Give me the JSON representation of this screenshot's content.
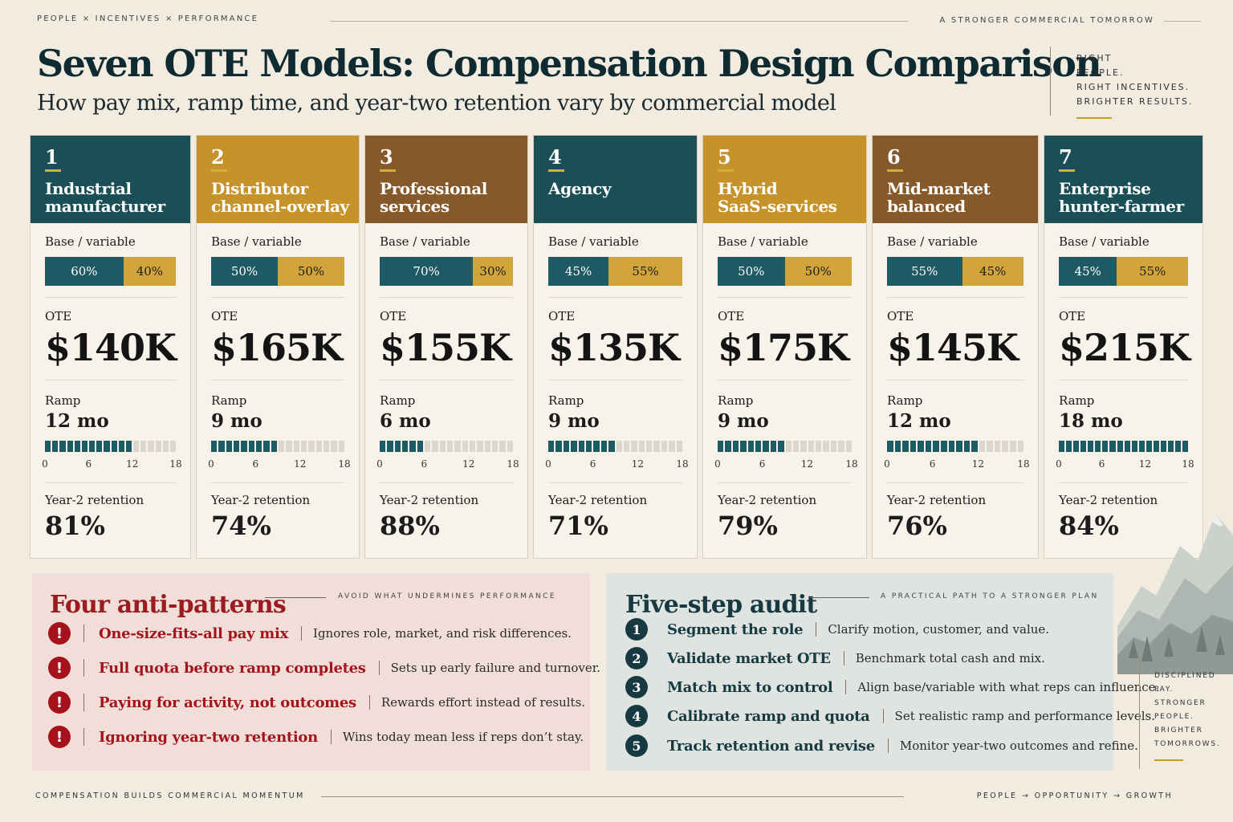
{
  "top": {
    "left": "PEOPLE  ×  INCENTIVES  ×  PERFORMANCE",
    "right": "A STRONGER COMMERCIAL TOMORROW"
  },
  "title": "Seven OTE Models: Compensation Design Comparison",
  "subtitle": "How pay mix, ramp time, and year-two retention vary by commercial model",
  "tagline": [
    "RIGHT",
    "PEOPLE.",
    "RIGHT INCENTIVES.",
    "BRIGHTER RESULTS."
  ],
  "labels": {
    "mix": "Base / variable",
    "ote": "OTE",
    "ramp": "Ramp",
    "retention": "Year-2 retention",
    "ticks": [
      "0",
      "6",
      "12",
      "18"
    ]
  },
  "colors": {
    "teal": "#1b4f58",
    "gold": "#c6922a",
    "brown": "#86592b",
    "base_bar": "#1e5a63",
    "variable_bar": "#d2a53b",
    "alert_red": "#a6121b"
  },
  "models": [
    {
      "num": "1",
      "name": [
        "Industrial",
        "manufacturer"
      ],
      "color": "teal",
      "base": 60,
      "variable": 40,
      "base_label": "60%",
      "variable_label": "40%",
      "ote": "$140K",
      "ramp_months": 12,
      "ramp": "12 mo",
      "retention": "81%"
    },
    {
      "num": "2",
      "name": [
        "Distributor",
        "channel-overlay"
      ],
      "color": "gold",
      "base": 50,
      "variable": 50,
      "base_label": "50%",
      "variable_label": "50%",
      "ote": "$165K",
      "ramp_months": 9,
      "ramp": "9 mo",
      "retention": "74%"
    },
    {
      "num": "3",
      "name": [
        "Professional",
        "services"
      ],
      "color": "brown",
      "base": 70,
      "variable": 30,
      "base_label": "70%",
      "variable_label": "30%",
      "ote": "$155K",
      "ramp_months": 6,
      "ramp": "6 mo",
      "retention": "88%"
    },
    {
      "num": "4",
      "name": [
        "Agency"
      ],
      "color": "teal",
      "base": 45,
      "variable": 55,
      "base_label": "45%",
      "variable_label": "55%",
      "ote": "$135K",
      "ramp_months": 9,
      "ramp": "9 mo",
      "retention": "71%"
    },
    {
      "num": "5",
      "name": [
        "Hybrid",
        "SaaS-services"
      ],
      "color": "gold",
      "base": 50,
      "variable": 50,
      "base_label": "50%",
      "variable_label": "50%",
      "ote": "$175K",
      "ramp_months": 9,
      "ramp": "9 mo",
      "retention": "79%"
    },
    {
      "num": "6",
      "name": [
        "Mid-market",
        "balanced"
      ],
      "color": "brown",
      "base": 55,
      "variable": 45,
      "base_label": "55%",
      "variable_label": "45%",
      "ote": "$145K",
      "ramp_months": 12,
      "ramp": "12 mo",
      "retention": "76%"
    },
    {
      "num": "7",
      "name": [
        "Enterprise",
        "hunter-farmer"
      ],
      "color": "teal",
      "base": 45,
      "variable": 55,
      "base_label": "45%",
      "variable_label": "55%",
      "ote": "$215K",
      "ramp_months": 18,
      "ramp": "18 mo",
      "retention": "84%"
    }
  ],
  "anti": {
    "title": "Four anti-patterns",
    "kicker": "AVOID WHAT UNDERMINES PERFORMANCE",
    "items": [
      {
        "title": "One-size-fits-all pay mix",
        "desc": "Ignores role, market, and risk differences."
      },
      {
        "title": "Full quota before ramp completes",
        "desc": "Sets up early failure and turnover."
      },
      {
        "title": "Paying for activity, not outcomes",
        "desc": "Rewards effort instead of results."
      },
      {
        "title": "Ignoring year-two retention",
        "desc": "Wins today mean less if reps don’t stay."
      }
    ]
  },
  "audit": {
    "title": "Five-step audit",
    "kicker": "A PRACTICAL PATH TO A STRONGER PLAN",
    "steps": [
      {
        "n": "1",
        "title": "Segment the role",
        "desc": "Clarify motion, customer, and value."
      },
      {
        "n": "2",
        "title": "Validate market OTE",
        "desc": "Benchmark total cash and mix."
      },
      {
        "n": "3",
        "title": "Match mix to control",
        "desc": "Align base/variable with what reps can influence."
      },
      {
        "n": "4",
        "title": "Calibrate ramp and quota",
        "desc": "Set realistic ramp and performance levels."
      },
      {
        "n": "5",
        "title": "Track retention and revise",
        "desc": "Monitor year-two outcomes and refine."
      }
    ]
  },
  "sidenote": [
    "DISCIPLINED",
    "PAY.",
    "STRONGER",
    "PEOPLE.",
    "BRIGHTER",
    "TOMORROWS."
  ],
  "footer": {
    "left": "COMPENSATION BUILDS COMMERCIAL MOMENTUM",
    "right": "PEOPLE  →  OPPORTUNITY  →  GROWTH"
  }
}
